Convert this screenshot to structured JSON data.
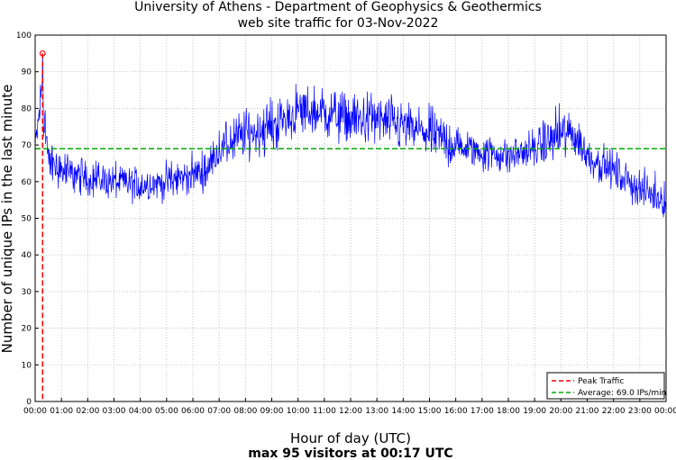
{
  "chart_data": {
    "type": "line",
    "title": "University of Athens - Department of Geophysics & Geothermics",
    "subtitle": "web site traffic for 03-Nov-2022",
    "xlabel": "Hour of day (UTC)",
    "ylabel": "Number of unique IPs in the last minute",
    "footer": "max 95 visitors at 00:17 UTC",
    "xlim_minutes": [
      0,
      1440
    ],
    "ylim": [
      0,
      100
    ],
    "x_ticks": [
      "00:00",
      "01:00",
      "02:00",
      "03:00",
      "04:00",
      "05:00",
      "06:00",
      "07:00",
      "08:00",
      "09:00",
      "10:00",
      "11:00",
      "12:00",
      "13:00",
      "14:00",
      "15:00",
      "16:00",
      "17:00",
      "18:00",
      "19:00",
      "20:00",
      "21:00",
      "22:00",
      "23:00",
      "00:00"
    ],
    "y_ticks": [
      0,
      10,
      20,
      30,
      40,
      50,
      60,
      70,
      80,
      90,
      100
    ],
    "grid": true,
    "legend_position": "bottom-right",
    "colors": {
      "series": "#0000ff",
      "peak": "#ff0000",
      "average": "#00aa00"
    },
    "series": [
      {
        "values_by_hour": [
          {
            "hour": "00:00",
            "value": 68
          },
          {
            "hour": "00:15",
            "value": 85
          },
          {
            "hour": "00:30",
            "value": 66
          },
          {
            "hour": "01:00",
            "value": 63
          },
          {
            "hour": "02:00",
            "value": 61
          },
          {
            "hour": "03:00",
            "value": 60
          },
          {
            "hour": "04:00",
            "value": 59
          },
          {
            "hour": "05:00",
            "value": 60
          },
          {
            "hour": "06:00",
            "value": 62
          },
          {
            "hour": "06:30",
            "value": 63
          },
          {
            "hour": "07:00",
            "value": 69
          },
          {
            "hour": "08:00",
            "value": 73
          },
          {
            "hour": "09:00",
            "value": 75
          },
          {
            "hour": "10:00",
            "value": 79
          },
          {
            "hour": "11:00",
            "value": 79
          },
          {
            "hour": "12:00",
            "value": 77
          },
          {
            "hour": "13:00",
            "value": 77
          },
          {
            "hour": "14:00",
            "value": 75
          },
          {
            "hour": "15:00",
            "value": 73
          },
          {
            "hour": "16:00",
            "value": 70
          },
          {
            "hour": "17:00",
            "value": 68
          },
          {
            "hour": "18:00",
            "value": 67
          },
          {
            "hour": "19:00",
            "value": 69
          },
          {
            "hour": "20:00",
            "value": 73
          },
          {
            "hour": "20:30",
            "value": 73
          },
          {
            "hour": "21:00",
            "value": 67
          },
          {
            "hour": "22:00",
            "value": 63
          },
          {
            "hour": "23:00",
            "value": 58
          },
          {
            "hour": "24:00",
            "value": 55
          }
        ]
      },
      {
        "name": "Peak Traffic",
        "x": "00:17",
        "value": 95
      },
      {
        "name": "Average: 69.0 IPs/min",
        "value": 69.0
      }
    ]
  }
}
